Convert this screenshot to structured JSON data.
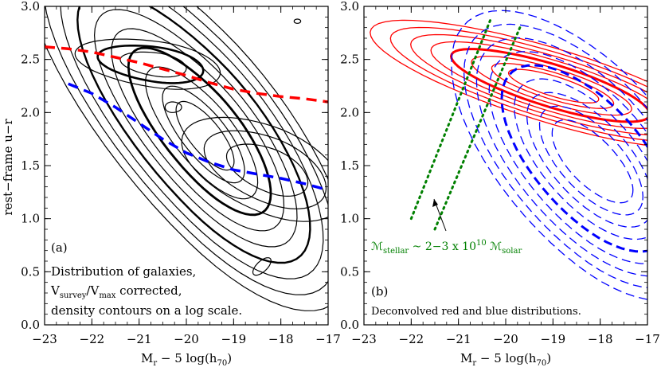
{
  "chart_data": [
    {
      "panel": "a",
      "type": "contour",
      "xlabel": "Mr − 5 log(h70)",
      "ylabel": "rest−frame u−r",
      "xlim": [
        -23,
        -17
      ],
      "ylim": [
        0.0,
        3.0
      ],
      "xticks": [
        -23,
        -22,
        -21,
        -20,
        -19,
        -18,
        -17
      ],
      "yticks": [
        0.0,
        0.5,
        1.0,
        1.5,
        2.0,
        2.5,
        3.0
      ],
      "panel_label": "(a)",
      "annotation_lines": [
        "Distribution of galaxies,",
        "Vsurvey/Vmax corrected,",
        "density contours on a log scale."
      ],
      "series": [
        {
          "color": "#ff0000",
          "style": "dashed",
          "x": [
            -23.0,
            -22.5,
            -22.0,
            -21.5,
            -21.0,
            -20.5,
            -20.0,
            -19.5,
            -19.0,
            -18.5,
            -18.0,
            -17.5,
            -17.0
          ],
          "y": [
            2.62,
            2.6,
            2.57,
            2.52,
            2.47,
            2.41,
            2.35,
            2.28,
            2.22,
            2.18,
            2.15,
            2.13,
            2.1
          ]
        },
        {
          "color": "#0000ff",
          "style": "dashed",
          "x": [
            -22.5,
            -22.0,
            -21.5,
            -21.0,
            -20.5,
            -20.0,
            -19.5,
            -19.0,
            -18.5,
            -18.0,
            -17.5,
            -17.0
          ],
          "y": [
            2.27,
            2.18,
            2.05,
            1.9,
            1.75,
            1.62,
            1.53,
            1.46,
            1.42,
            1.38,
            1.33,
            1.27
          ]
        }
      ]
    },
    {
      "panel": "b",
      "type": "contour",
      "xlabel": "Mr − 5 log(h70)",
      "xlim": [
        -23,
        -17
      ],
      "ylim": [
        0.0,
        3.0
      ],
      "xticks": [
        -23,
        -22,
        -21,
        -20,
        -19,
        -18,
        -17
      ],
      "yticks": [
        0.0,
        0.5,
        1.0,
        1.5,
        2.0,
        2.5,
        3.0
      ],
      "panel_label": "(b)",
      "annotation": "Deconvolved red and blue distributions.",
      "mass_label": "ℳstellar ~ 2−3 x 10¹⁰ ℳsolar",
      "mass_label_color": "#008000",
      "red_color": "#ff0000",
      "blue_color": "#0000ff",
      "green_lines": [
        {
          "x": [
            -22.0,
            -20.3
          ],
          "y": [
            1.0,
            2.9
          ]
        },
        {
          "x": [
            -21.5,
            -19.7
          ],
          "y": [
            0.9,
            2.8
          ]
        }
      ]
    }
  ]
}
